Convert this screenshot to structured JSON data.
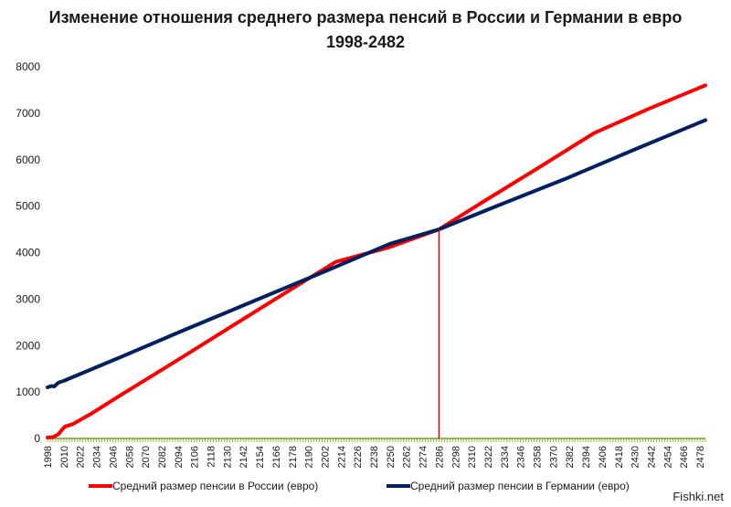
{
  "chart_data": {
    "type": "line",
    "title_line1": "Изменение отношения среднего размера пенсий в России и Германии в евро",
    "title_line2": "1998-2482",
    "x_ticks": [
      "1998",
      "2010",
      "2022",
      "2034",
      "2046",
      "2058",
      "2070",
      "2082",
      "2094",
      "2106",
      "2118",
      "2130",
      "2142",
      "2154",
      "2166",
      "2178",
      "2190",
      "2202",
      "2214",
      "2226",
      "2238",
      "2250",
      "2262",
      "2274",
      "2286",
      "2298",
      "2310",
      "2322",
      "2334",
      "2346",
      "2358",
      "2370",
      "2382",
      "2394",
      "2406",
      "2418",
      "2430",
      "2442",
      "2454",
      "2466",
      "2478"
    ],
    "x_range": [
      1998,
      2482
    ],
    "ylim": [
      0,
      8000
    ],
    "y_ticks": [
      "0",
      "1000",
      "2000",
      "3000",
      "4000",
      "5000",
      "6000",
      "7000",
      "8000"
    ],
    "series": [
      {
        "name": "Средний размер пенсии в России (евро)",
        "color": "#ff0000",
        "x": [
          1998,
          2002,
          2006,
          2009,
          2011,
          2016,
          2030,
          2050,
          2090,
          2130,
          2170,
          2210,
          2250,
          2286,
          2320,
          2360,
          2400,
          2440,
          2482
        ],
        "y": [
          20,
          30,
          90,
          200,
          260,
          300,
          530,
          900,
          1620,
          2350,
          3080,
          3800,
          4120,
          4500,
          5120,
          5840,
          6570,
          7090,
          7600
        ]
      },
      {
        "name": "Средний размер пенсии в Германии (евро)",
        "color": "#002060",
        "x": [
          1998,
          2001,
          2003,
          2006,
          2010,
          2050,
          2100,
          2150,
          2200,
          2250,
          2286,
          2330,
          2380,
          2430,
          2482
        ],
        "y": [
          1100,
          1130,
          1120,
          1200,
          1240,
          1730,
          2350,
          2960,
          3570,
          4190,
          4500,
          5020,
          5600,
          6220,
          6850
        ]
      }
    ],
    "marker_line": {
      "x": 2286,
      "color": "#e00000"
    },
    "grid": false,
    "legend_position": "bottom"
  },
  "watermark": "Fishki.net"
}
